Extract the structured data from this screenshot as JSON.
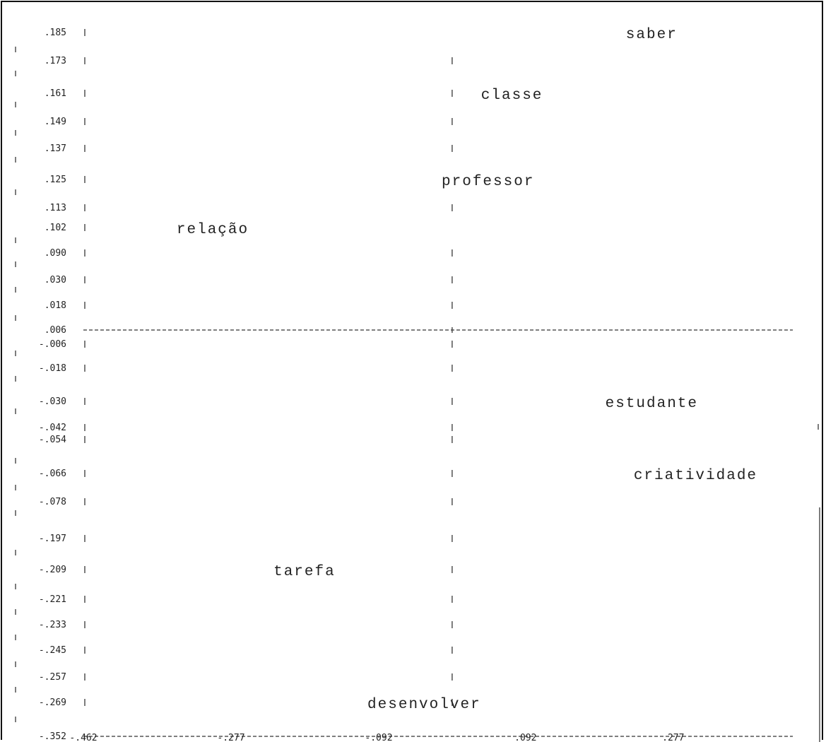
{
  "chart_data": {
    "type": "scatter",
    "title": "",
    "xlabel": "",
    "ylabel": "",
    "grid": false,
    "y_tick_labels": [
      ".185",
      ".173",
      ".161",
      ".149",
      ".137",
      ".125",
      ".113",
      ".102",
      ".090",
      ".030",
      ".018",
      ".006",
      "-.006",
      "-.018",
      "-.030",
      "-.042",
      "-.054",
      "-.066",
      "-.078",
      "-.197",
      "-.209",
      "-.221",
      "-.233",
      "-.245",
      "-.257",
      "-.269",
      "-.352"
    ],
    "x_tick_labels": [
      "-.462",
      "-.277",
      "-.092",
      ".092",
      ".277"
    ],
    "x_ticks": [
      -0.462,
      -0.277,
      -0.092,
      0.092,
      0.277
    ],
    "xlim": [
      -0.462,
      0.425
    ],
    "origin": {
      "x": 0.0,
      "y_label": ".006"
    },
    "points": [
      {
        "label": "saber",
        "x": 0.25,
        "y": 0.185
      },
      {
        "label": "classe",
        "x": 0.075,
        "y": 0.161
      },
      {
        "label": "professor",
        "x": 0.045,
        "y": 0.125
      },
      {
        "label": "relação",
        "x": -0.3,
        "y": 0.102
      },
      {
        "label": "estudante",
        "x": 0.25,
        "y": -0.03
      },
      {
        "label": "criatividade",
        "x": 0.305,
        "y": -0.066
      },
      {
        "label": "tarefa",
        "x": -0.185,
        "y": -0.209
      },
      {
        "label": "desenvolver",
        "x": -0.035,
        "y": -0.269
      }
    ]
  }
}
